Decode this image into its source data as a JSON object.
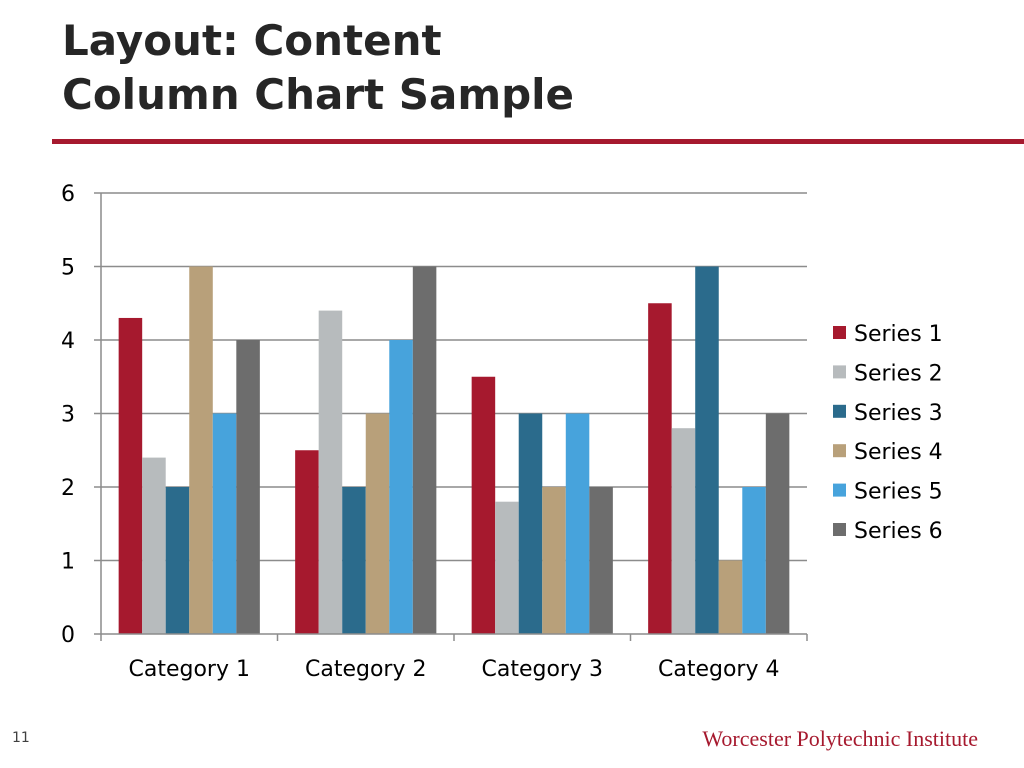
{
  "slide": {
    "title_line1": "Layout: Content",
    "title_line2": "Column Chart Sample",
    "slide_number": "11",
    "institution": "Worcester Polytechnic Institute"
  },
  "colors": {
    "accent": "#a6192e",
    "title_text": "#262626"
  },
  "chart_data": {
    "type": "bar",
    "title": "",
    "xlabel": "",
    "ylabel": "",
    "categories": [
      "Category 1",
      "Category 2",
      "Category 3",
      "Category 4"
    ],
    "ylim": [
      0,
      6
    ],
    "yticks": [
      0,
      1,
      2,
      3,
      4,
      5,
      6
    ],
    "grid": true,
    "legend_position": "right",
    "series": [
      {
        "name": "Series 1",
        "color": "#a6192e",
        "values": [
          4.3,
          2.5,
          3.5,
          4.5
        ]
      },
      {
        "name": "Series 2",
        "color": "#b7bbbd",
        "values": [
          2.4,
          4.4,
          1.8,
          2.8
        ]
      },
      {
        "name": "Series 3",
        "color": "#2b6b8c",
        "values": [
          2,
          2,
          3,
          5
        ]
      },
      {
        "name": "Series 4",
        "color": "#b8a07a",
        "values": [
          5,
          3,
          2,
          1
        ]
      },
      {
        "name": "Series 5",
        "color": "#47a3dc",
        "values": [
          3,
          4,
          3,
          2
        ]
      },
      {
        "name": "Series 6",
        "color": "#6d6d6d",
        "values": [
          4,
          5,
          2,
          3
        ]
      }
    ]
  }
}
